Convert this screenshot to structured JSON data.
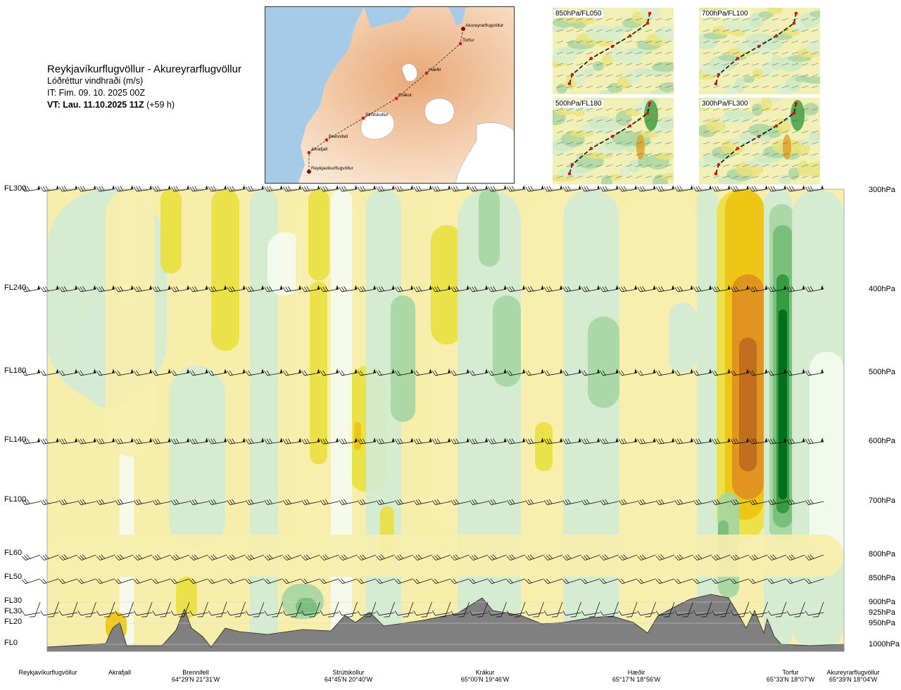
{
  "header": {
    "route": "Reykjavíkurflugvöllur - Akureyrarflugvöllur",
    "parameter": "Lóðréttur vindhraði (m/s)",
    "issue_time": "IT: Fim. 09. 10. 2025 00Z",
    "valid_time_bold": "VT: Lau. 11.10.2025 11Z",
    "valid_time_lead": "(+59 h)"
  },
  "route_map": {
    "labels": [
      "Akureyrarflugvöllur",
      "Torfur",
      "Hæðir",
      "Krákur",
      "Strútskollur",
      "Brennifell",
      "Akrafjall",
      "Reykjavíkurflugvöllur"
    ]
  },
  "level_maps": [
    {
      "label": "850hPa/FL050"
    },
    {
      "label": "700hPa/FL100"
    },
    {
      "label": "500hPa/FL180"
    },
    {
      "label": "300hPa/FL300"
    }
  ],
  "flight_levels": [
    "FL300",
    "FL240",
    "FL180",
    "FL140",
    "FL100",
    "FL60",
    "FL50",
    "FL30",
    "FL30",
    "FL20",
    "FL0"
  ],
  "pressure_levels": [
    "300hPa",
    "400hPa",
    "500hPa",
    "600hPa",
    "700hPa",
    "800hPa",
    "850hPa",
    "900hPa",
    "925hPa",
    "950hPa",
    "1000hPa"
  ],
  "waypoints": [
    {
      "name": "Reykjavíkurflugvöllur",
      "coord": ""
    },
    {
      "name": "Akrafjall",
      "coord": ""
    },
    {
      "name": "Brennifell",
      "coord": "64°29'N 21°31'W"
    },
    {
      "name": "Strútskollur",
      "coord": "64°45'N 20°40'W"
    },
    {
      "name": "Krákur",
      "coord": "65°00'N 19°46'W"
    },
    {
      "name": "Hæðir",
      "coord": "65°17'N 18°56'W"
    },
    {
      "name": "Torfur",
      "coord": "65°33'N 18°07'W"
    },
    {
      "name": "Akureyrarflugvöllur",
      "coord": "65°39'N 18°04'W"
    }
  ],
  "chart_data": {
    "type": "heatmap",
    "variable": "Lóðréttur vindhraði (m/s)",
    "x_axis": "route distance, Reykjavíkurflugvöllur to Akureyrarflugvöllur",
    "y_levels_hPa": [
      300,
      400,
      500,
      600,
      700,
      800,
      850,
      900,
      925,
      950,
      1000
    ],
    "y_levels_FL": [
      "FL300",
      "FL240",
      "FL180",
      "FL140",
      "FL100",
      "FL60",
      "FL50",
      "FL30",
      "FL30",
      "FL20",
      "FL0"
    ],
    "colors": {
      "strong_down": "#006c1c",
      "down_2": "#2f9a3a",
      "down_3": "#77bd78",
      "down_4": "#a6d6a2",
      "weak_down": "#d3ecd3",
      "near_zero": "#f4fbef",
      "weak_up": "#f7eeac",
      "up_2": "#e9df40",
      "up_3": "#eec412",
      "up_4": "#e09020",
      "strong_up": "#be6a1e",
      "terrain": "#808080"
    },
    "features": [
      {
        "name": "updraft",
        "route_fraction": 0.93,
        "levels_hPa": [
          300,
          720
        ],
        "color": "up_4"
      },
      {
        "name": "downdraft",
        "route_fraction": 0.97,
        "levels_hPa": [
          300,
          760
        ],
        "color": "strong_down"
      }
    ],
    "wind_barbs": "drawn at each pressure level along the route",
    "grid": false
  }
}
